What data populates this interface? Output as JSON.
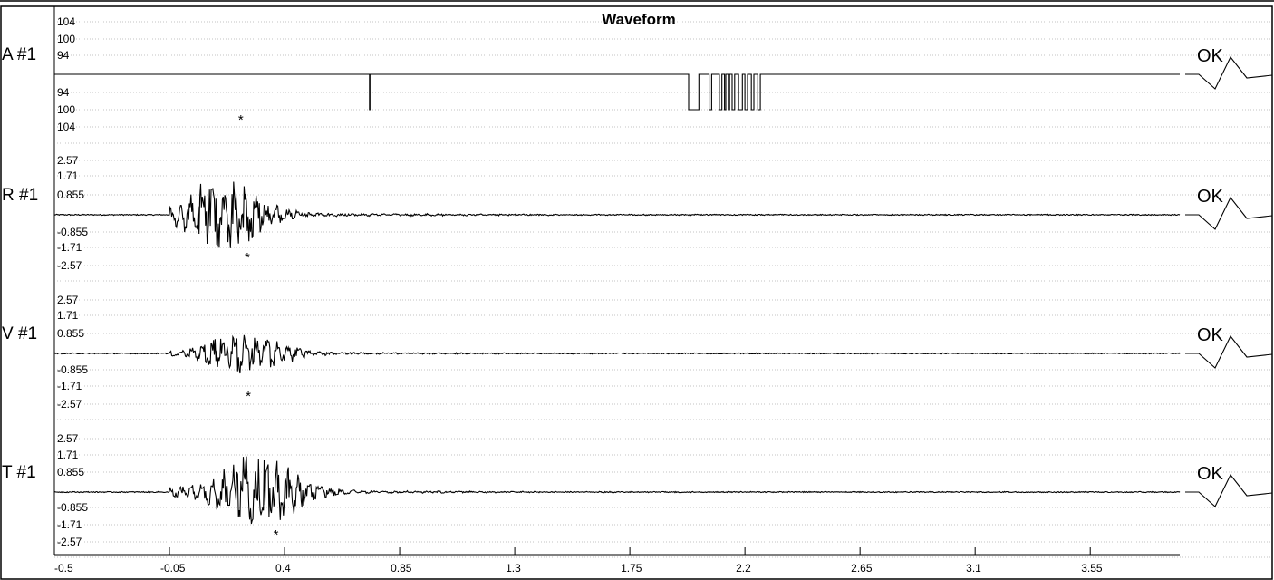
{
  "chart_data": {
    "type": "line",
    "title": "Waveform",
    "x_range": [
      -0.5,
      3.9
    ],
    "x_ticks": [
      "-0.5",
      "-0.05",
      "0.4",
      "0.85",
      "1.3",
      "1.75",
      "2.2",
      "2.65",
      "3.1",
      "3.55"
    ],
    "x_tick_values": [
      -0.5,
      -0.05,
      0.4,
      0.85,
      1.3,
      1.75,
      2.2,
      2.65,
      3.1,
      3.55
    ],
    "grid": true,
    "channels": [
      {
        "name": "A #1",
        "status": "OK",
        "tick_labels": [
          "104",
          "100",
          "94",
          "94",
          "100",
          "104"
        ],
        "tick_values": [
          104,
          100,
          94,
          -94,
          -100,
          -104
        ],
        "ylim": [
          -110,
          110
        ],
        "kind": "digital",
        "segments": [
          [
            -0.5,
            0
          ],
          [
            0.732,
            0
          ],
          [
            0.732,
            -100
          ],
          [
            0.734,
            -100
          ],
          [
            0.734,
            0
          ],
          [
            1.98,
            0
          ],
          [
            1.98,
            -100
          ],
          [
            2.02,
            -100
          ],
          [
            2.02,
            0
          ],
          [
            2.06,
            0
          ],
          [
            2.06,
            -100
          ],
          [
            2.07,
            -100
          ],
          [
            2.07,
            0
          ],
          [
            2.1,
            0
          ],
          [
            2.1,
            -100
          ],
          [
            2.11,
            -100
          ],
          [
            2.11,
            0
          ],
          [
            2.12,
            0
          ],
          [
            2.12,
            -100
          ],
          [
            2.125,
            -100
          ],
          [
            2.125,
            0
          ],
          [
            2.135,
            0
          ],
          [
            2.135,
            -100
          ],
          [
            2.14,
            -100
          ],
          [
            2.14,
            0
          ],
          [
            2.15,
            0
          ],
          [
            2.15,
            -100
          ],
          [
            2.16,
            -100
          ],
          [
            2.16,
            0
          ],
          [
            2.175,
            0
          ],
          [
            2.175,
            -100
          ],
          [
            2.19,
            -100
          ],
          [
            2.19,
            0
          ],
          [
            2.2,
            0
          ],
          [
            2.2,
            -100
          ],
          [
            2.21,
            -100
          ],
          [
            2.21,
            0
          ],
          [
            2.225,
            0
          ],
          [
            2.225,
            -100
          ],
          [
            2.235,
            -100
          ],
          [
            2.235,
            0
          ],
          [
            2.25,
            0
          ],
          [
            2.25,
            -100
          ],
          [
            2.26,
            -100
          ],
          [
            2.26,
            0
          ],
          [
            3.9,
            0
          ]
        ],
        "marker_x": 0.233
      },
      {
        "name": "R #1",
        "status": "OK",
        "tick_labels": [
          "2.57",
          "1.71",
          "0.855",
          "-0.855",
          "-1.71",
          "-2.57"
        ],
        "tick_values": [
          2.57,
          1.71,
          0.855,
          -0.855,
          -1.71,
          -2.57
        ],
        "ylim": [
          -2.9,
          2.9
        ],
        "kind": "seismic",
        "onset": -0.05,
        "peak_center": 0.15,
        "amplitude": 1.75,
        "marker_x": 0.258
      },
      {
        "name": "V #1",
        "status": "OK",
        "tick_labels": [
          "2.57",
          "1.71",
          "0.855",
          "-0.855",
          "-1.71",
          "-2.57"
        ],
        "tick_values": [
          2.57,
          1.71,
          0.855,
          -0.855,
          -1.71,
          -2.57
        ],
        "ylim": [
          -2.9,
          2.9
        ],
        "kind": "seismic",
        "onset": -0.05,
        "peak_center": 0.25,
        "amplitude": 1.0,
        "marker_x": 0.262
      },
      {
        "name": "T #1",
        "status": "OK",
        "tick_labels": [
          "2.57",
          "1.71",
          "0.855",
          "-0.855",
          "-1.71",
          "-2.57"
        ],
        "tick_values": [
          2.57,
          1.71,
          0.855,
          -0.855,
          -1.71,
          -2.57
        ],
        "ylim": [
          -2.9,
          2.9
        ],
        "kind": "seismic",
        "onset": -0.05,
        "peak_center": 0.3,
        "amplitude": 1.75,
        "marker_x": 0.37
      }
    ],
    "marker_symbol": "*"
  }
}
